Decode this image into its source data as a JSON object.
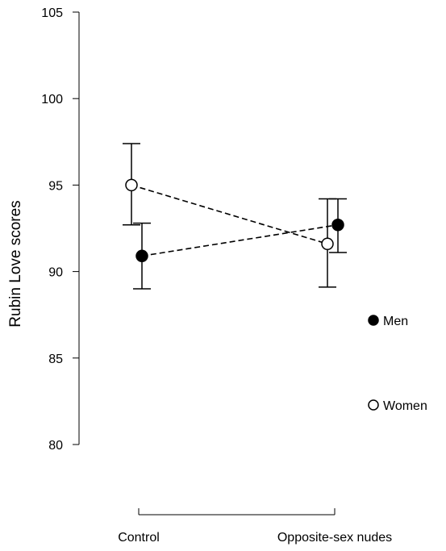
{
  "chart_data": {
    "type": "scatter",
    "ylabel": "Rubin Love scores",
    "ylim": [
      80,
      105
    ],
    "yticks": [
      80,
      85,
      90,
      95,
      100,
      105
    ],
    "categories": [
      "Control",
      "Opposite-sex nudes"
    ],
    "series": [
      {
        "name": "Men",
        "marker": "filled-circle",
        "line": "dashed",
        "values": [
          90.9,
          92.7
        ],
        "err_low": [
          89.0,
          91.1
        ],
        "err_high": [
          92.8,
          94.2
        ]
      },
      {
        "name": "Women",
        "marker": "open-circle",
        "line": "dashed",
        "values": [
          95.0,
          91.6
        ],
        "err_low": [
          92.7,
          89.1
        ],
        "err_high": [
          97.4,
          94.2
        ]
      }
    ],
    "legend_position": "right",
    "grid": false
  }
}
